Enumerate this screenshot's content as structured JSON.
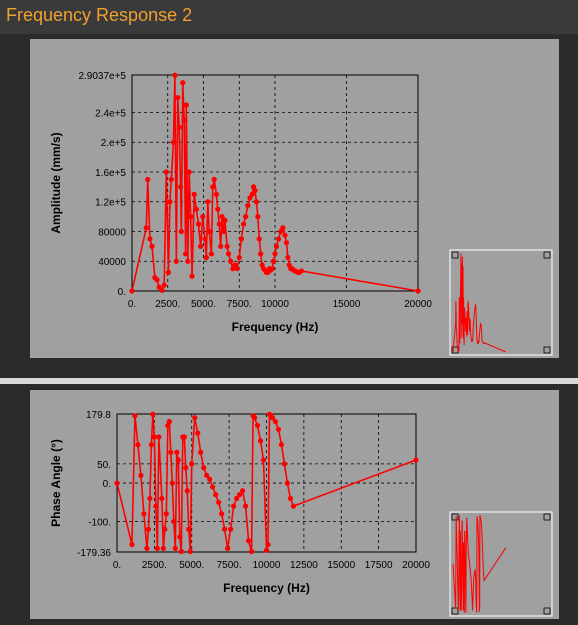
{
  "window": {
    "title": "Frequency Response 2"
  },
  "colors": {
    "series": "#ff0000",
    "panel": "#a0a0a0",
    "title": "#f0a030"
  },
  "chart_data": [
    {
      "type": "line",
      "xlabel": "Frequency (Hz)",
      "ylabel": "Amplitude (mm/s)",
      "xlim": [
        0,
        20000
      ],
      "ylim": [
        0,
        290370
      ],
      "x_ticks": [
        0,
        2500,
        5000,
        7500,
        10000,
        15000,
        20000
      ],
      "x_tick_labels": [
        "0.",
        "2500.",
        "5000.",
        "7500.",
        "10000",
        "15000",
        "20000"
      ],
      "y_ticks": [
        0,
        40000,
        80000,
        120000,
        160000,
        200000,
        240000,
        290370
      ],
      "y_tick_labels": [
        "0.",
        "40000",
        "80000",
        "1.2e+5",
        "1.6e+5",
        "2.e+5",
        "2.4e+5",
        "2.9037e+5"
      ],
      "grid": true,
      "series": [
        {
          "x": [
            0,
            1000,
            1100,
            1250,
            1400,
            1600,
            1750,
            1900,
            2100,
            2250,
            2400,
            2550,
            2650,
            2750,
            2900,
            3000,
            3100,
            3200,
            3300,
            3400,
            3450,
            3550,
            3650,
            3750,
            3800,
            3900,
            4000,
            4100,
            4200,
            4350,
            4500,
            4650,
            4800,
            4950,
            5100,
            5200,
            5300,
            5400,
            5550,
            5650,
            5750,
            5900,
            6000,
            6100,
            6200,
            6300,
            6400,
            6500,
            6650,
            6750,
            6900,
            7050,
            7200,
            7350,
            7500,
            7650,
            7800,
            7950,
            8100,
            8250,
            8400,
            8500,
            8600,
            8700,
            8800,
            8900,
            9000,
            9100,
            9200,
            9300,
            9400,
            9500,
            9600,
            9700,
            9800,
            9900,
            10000,
            10100,
            10250,
            10400,
            10550,
            10700,
            10800,
            10900,
            11000,
            11100,
            11200,
            11300,
            11400,
            11500,
            11600,
            11700,
            11850,
            20000
          ],
          "y": [
            0,
            85000,
            150000,
            70000,
            60000,
            18000,
            15000,
            5000,
            1000,
            8000,
            160000,
            25000,
            120000,
            150000,
            200000,
            290000,
            40000,
            260000,
            220000,
            140000,
            80000,
            280000,
            230000,
            50000,
            250000,
            40000,
            160000,
            100000,
            20000,
            130000,
            110000,
            90000,
            60000,
            100000,
            70000,
            45000,
            120000,
            80000,
            50000,
            140000,
            150000,
            130000,
            110000,
            90000,
            60000,
            100000,
            80000,
            95000,
            60000,
            50000,
            40000,
            30000,
            35000,
            30000,
            45000,
            70000,
            90000,
            100000,
            115000,
            125000,
            130000,
            140000,
            135000,
            120000,
            100000,
            70000,
            50000,
            35000,
            30000,
            28000,
            25000,
            25000,
            30000,
            28000,
            30000,
            40000,
            50000,
            60000,
            70000,
            80000,
            85000,
            75000,
            65000,
            45000,
            35000,
            30000,
            30000,
            28000,
            27000,
            26000,
            25000,
            25000,
            27000,
            0
          ]
        }
      ]
    },
    {
      "type": "line",
      "xlabel": "Frequency (Hz)",
      "ylabel": "Phase Angle (°)",
      "xlim": [
        0,
        20000
      ],
      "ylim": [
        -179.36,
        179.8
      ],
      "x_ticks": [
        0,
        2500,
        5000,
        7500,
        10000,
        12500,
        15000,
        17500,
        20000
      ],
      "x_tick_labels": [
        "0.",
        "2500.",
        "5000.",
        "7500.",
        "10000",
        "12500",
        "15000",
        "17500",
        "20000"
      ],
      "y_ticks": [
        -179.36,
        -100,
        0,
        50,
        179.8
      ],
      "y_tick_labels": [
        "-179.36",
        "-100.",
        "0.",
        "50.",
        "179.8"
      ],
      "grid": true,
      "series": [
        {
          "x": [
            0,
            1000,
            1200,
            1400,
            1600,
            1800,
            2000,
            2100,
            2200,
            2300,
            2400,
            2500,
            2600,
            2700,
            2800,
            3000,
            3100,
            3200,
            3300,
            3400,
            3500,
            3600,
            3700,
            3800,
            3900,
            4000,
            4100,
            4200,
            4300,
            4400,
            4500,
            4600,
            4700,
            4800,
            4900,
            5000,
            5200,
            5400,
            5600,
            5800,
            6000,
            6200,
            6400,
            6600,
            6800,
            7000,
            7200,
            7400,
            7600,
            7800,
            8000,
            8200,
            8400,
            8600,
            8800,
            9000,
            9100,
            9200,
            9400,
            9600,
            9800,
            10000,
            10100,
            10200,
            10300,
            10400,
            10600,
            10800,
            11000,
            11200,
            11400,
            11600,
            11800,
            20000
          ],
          "y": [
            0,
            -160,
            175,
            100,
            20,
            -80,
            -170,
            -120,
            -40,
            100,
            179,
            120,
            -60,
            -170,
            120,
            -40,
            -170,
            -120,
            -80,
            150,
            160,
            80,
            0,
            -100,
            -170,
            80,
            60,
            -140,
            -178,
            120,
            120,
            40,
            -20,
            -120,
            -178,
            50,
            170,
            130,
            80,
            40,
            20,
            10,
            -10,
            -30,
            -50,
            -80,
            -120,
            -170,
            -120,
            -60,
            -40,
            -30,
            -20,
            -60,
            -150,
            -178,
            175,
            170,
            150,
            110,
            60,
            -175,
            -160,
            179,
            176,
            170,
            160,
            140,
            100,
            50,
            0,
            -40,
            -60,
            60
          ]
        }
      ]
    }
  ]
}
